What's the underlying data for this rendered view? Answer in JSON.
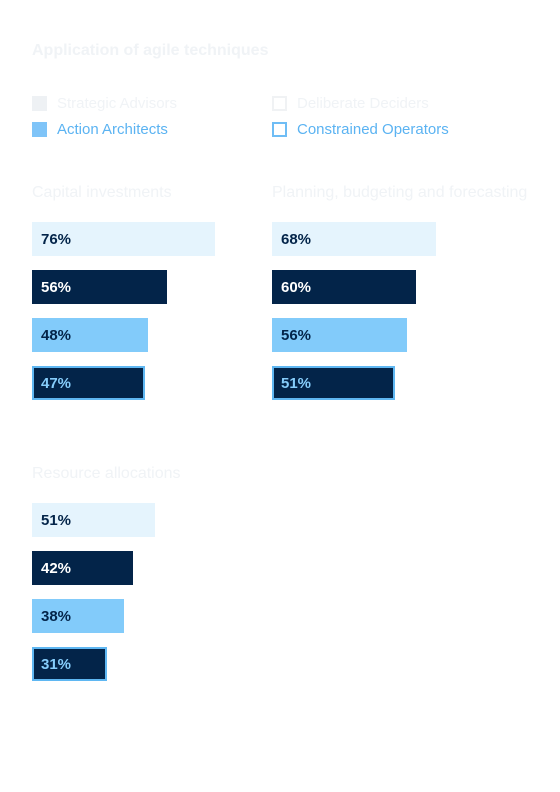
{
  "title": "Application of agile techniques",
  "legend": [
    {
      "label": "Strategic Advisors",
      "fill": "#eef1f4",
      "border": "#eef1f4",
      "text": "#f0f3f6"
    },
    {
      "label": "Deliberate Deciders",
      "fill": "#ffffff",
      "border": "#f0f2f4",
      "text": "#f0f3f6"
    },
    {
      "label": "Action Architects",
      "fill": "#7fc4f8",
      "border": "#7fc4f8",
      "text": "#5bb3f2"
    },
    {
      "label": "Constrained Operators",
      "fill": "#ffffff",
      "border": "#6fbdf5",
      "text": "#5bb3f2"
    }
  ],
  "colors": {
    "strategic": "#e5f4fd",
    "deliberate": "#032449",
    "action": "#82cbfa",
    "constrained": "#032449",
    "constrained_border": "#5fb7f2",
    "dark_text": "#032449",
    "light_text": "#ffffff",
    "constrained_text": "#86cdfb"
  },
  "chart_data": [
    {
      "type": "bar",
      "title": "Capital investments",
      "categories": [
        "Strategic Advisors",
        "Deliberate Deciders",
        "Action Architects",
        "Constrained Operators"
      ],
      "values": [
        76,
        56,
        48,
        47
      ],
      "labels": [
        "76%",
        "56%",
        "48%",
        "47%"
      ]
    },
    {
      "type": "bar",
      "title": "Planning, budgeting and forecasting",
      "categories": [
        "Strategic Advisors",
        "Deliberate Deciders",
        "Action Architects",
        "Constrained Operators"
      ],
      "values": [
        68,
        60,
        56,
        51
      ],
      "labels": [
        "68%",
        "60%",
        "56%",
        "51%"
      ]
    },
    {
      "type": "bar",
      "title": "Resource allocations",
      "categories": [
        "Strategic Advisors",
        "Deliberate Deciders",
        "Action Architects",
        "Constrained Operators"
      ],
      "values": [
        51,
        42,
        38,
        31
      ],
      "labels": [
        "51%",
        "42%",
        "38%",
        "31%"
      ]
    }
  ]
}
